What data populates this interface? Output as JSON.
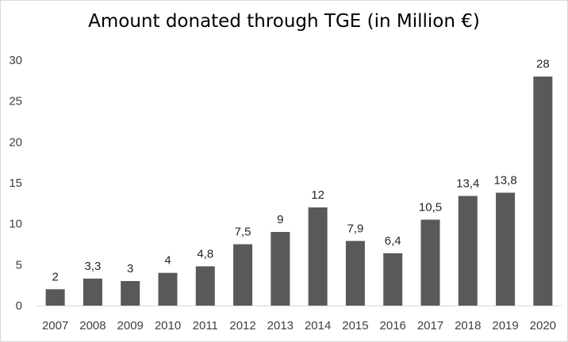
{
  "chart_data": {
    "type": "bar",
    "title": "Amount donated through TGE (in Million €)",
    "xlabel": "",
    "ylabel": "",
    "categories": [
      "2007",
      "2008",
      "2009",
      "2010",
      "2011",
      "2012",
      "2013",
      "2014",
      "2015",
      "2016",
      "2017",
      "2018",
      "2019",
      "2020"
    ],
    "values": [
      2,
      3.3,
      3,
      4,
      4.8,
      7.5,
      9,
      12,
      7.9,
      6.4,
      10.5,
      13.4,
      13.8,
      28
    ],
    "data_labels": [
      "2",
      "3,3",
      "3",
      "4",
      "4,8",
      "7,5",
      "9",
      "12",
      "7,9",
      "6,4",
      "10,5",
      "13,4",
      "13,8",
      "28"
    ],
    "y_ticks": [
      "0",
      "5",
      "10",
      "15",
      "20",
      "25",
      "30"
    ],
    "ylim": [
      0,
      30
    ],
    "grid": false,
    "bar_color": "#595959"
  }
}
